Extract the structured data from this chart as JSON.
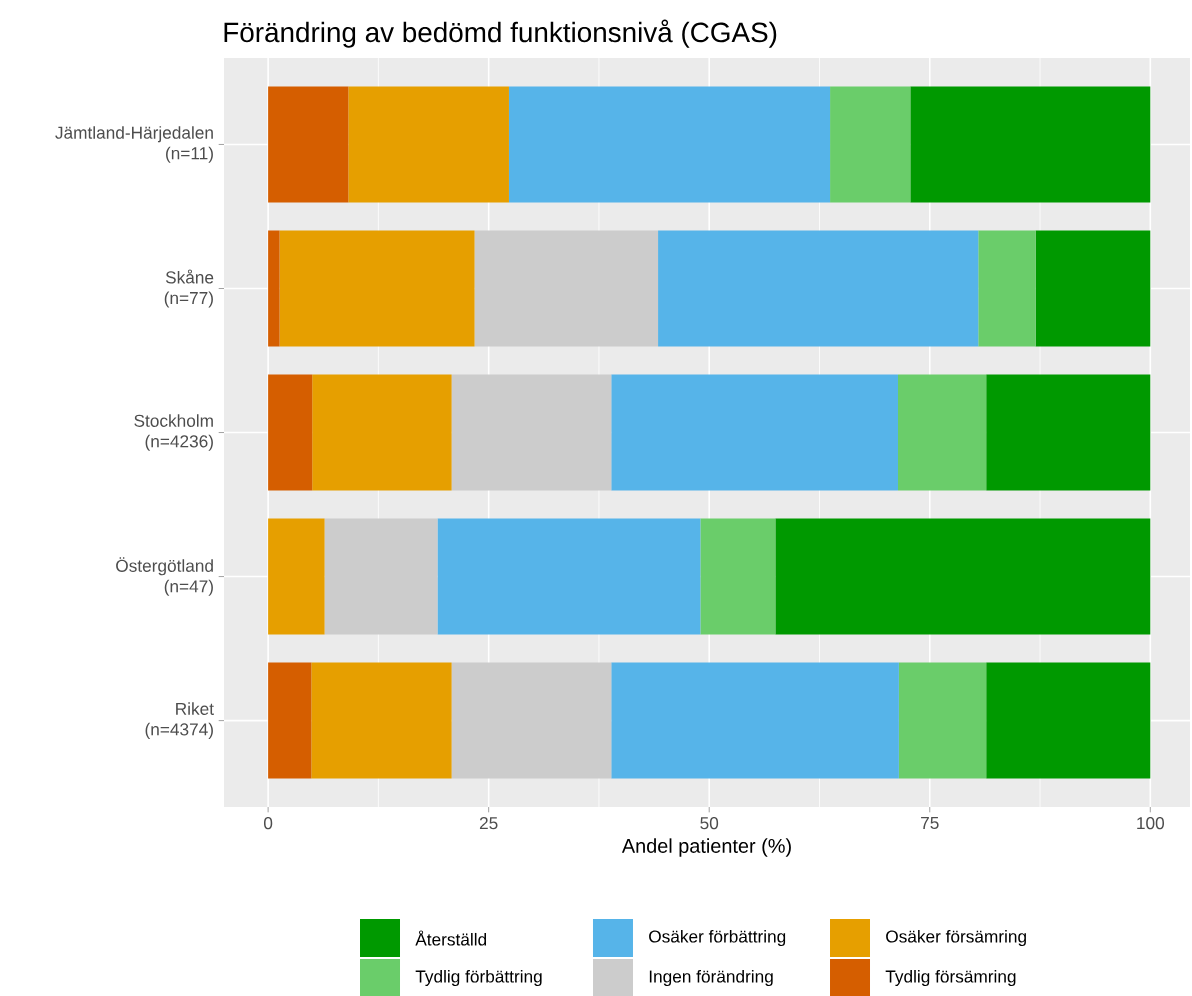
{
  "chart_data": {
    "type": "bar",
    "orientation": "horizontal",
    "stacked": true,
    "title": "Förändring av bedömd funktionsnivå (CGAS)",
    "xlabel": "Andel patienter (%)",
    "categories": [
      "Jämtland-Härjedalen\n(n=11)",
      "Skåne\n(n=77)",
      "Stockholm\n(n=4236)",
      "Östergötland\n(n=47)",
      "Riket\n(n=4374)"
    ],
    "series": [
      {
        "name": "Tydlig försämring",
        "color": "#d55e00",
        "values": [
          9.1,
          1.3,
          5.0,
          0,
          4.9
        ]
      },
      {
        "name": "Osäker försämring",
        "color": "#e69f00",
        "values": [
          18.2,
          22.1,
          15.8,
          6.4,
          15.9
        ]
      },
      {
        "name": "Ingen förändring",
        "color": "#cccccc",
        "values": [
          0,
          20.8,
          18.1,
          12.8,
          18.1
        ]
      },
      {
        "name": "Osäker förbättring",
        "color": "#56b4e9",
        "values": [
          36.4,
          36.3,
          32.5,
          29.8,
          32.6
        ]
      },
      {
        "name": "Tydlig förbättring",
        "color": "#6acd6a",
        "values": [
          9.1,
          6.5,
          10.0,
          8.5,
          9.9
        ]
      },
      {
        "name": "Återställd",
        "color": "#009900",
        "values": [
          27.2,
          13.0,
          18.6,
          42.5,
          18.6
        ]
      }
    ],
    "xlim": [
      -5,
      104.5
    ],
    "xticks": [
      0,
      25,
      50,
      75,
      100
    ],
    "grid": true,
    "legend": "bottom"
  }
}
